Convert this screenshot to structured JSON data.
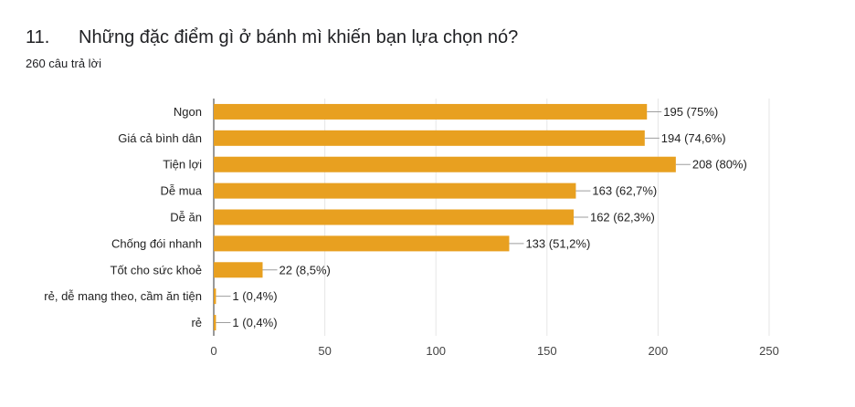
{
  "question": {
    "number": "11.",
    "title": "Những đặc điểm gì ở bánh mì khiến bạn lựa chọn nó?",
    "response_count": "260 câu trả lời"
  },
  "colors": {
    "bar": "#e8a020",
    "grid": "#e6e6e6",
    "axis": "#333333",
    "leader": "#9e9e9e"
  },
  "chart_data": {
    "type": "bar",
    "orientation": "horizontal",
    "categories": [
      "Ngon",
      "Giá cả bình dân",
      "Tiện lợi",
      "Dễ mua",
      "Dễ ăn",
      "Chống đói nhanh",
      "Tốt cho sức khoẻ",
      "rẻ, dễ mang theo, cầm ăn tiện",
      "rẻ"
    ],
    "values": [
      195,
      194,
      208,
      163,
      162,
      133,
      22,
      1,
      1
    ],
    "data_labels": [
      "195 (75%)",
      "194 (74,6%)",
      "208 (80%)",
      "163 (62,7%)",
      "162 (62,3%)",
      "133 (51,2%)",
      "22 (8,5%)",
      "1 (0,4%)",
      "1 (0,4%)"
    ],
    "xlim": [
      0,
      250
    ],
    "xticks": [
      0,
      50,
      100,
      150,
      200,
      250
    ],
    "xtick_labels": [
      "0",
      "50",
      "100",
      "150",
      "200",
      "250"
    ],
    "grid": true,
    "legend": "none"
  }
}
